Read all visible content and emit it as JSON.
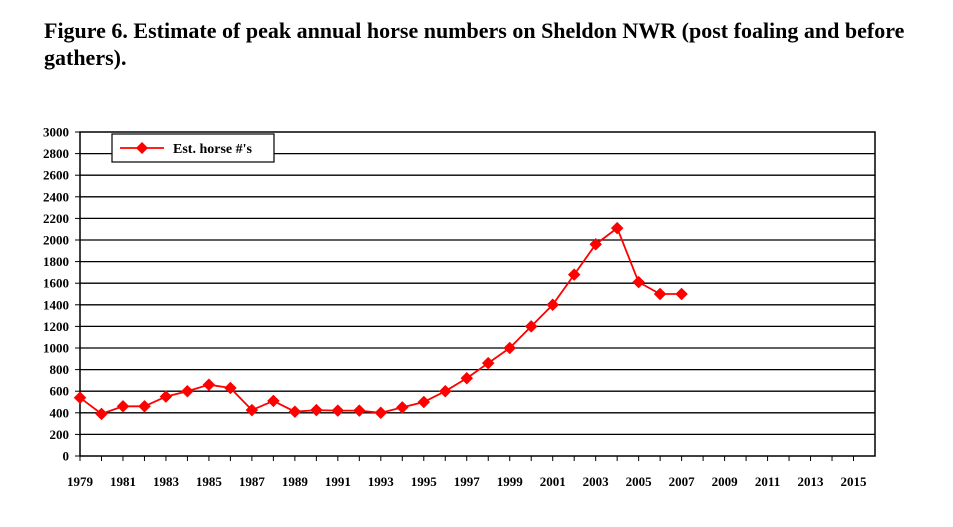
{
  "figure": {
    "title": "Figure 6. Estimate of peak annual horse numbers on Sheldon NWR (post foaling and before gathers)."
  },
  "chart_data": {
    "type": "line",
    "title": "Figure 6. Estimate of peak annual horse numbers on Sheldon NWR (post foaling and before gathers).",
    "xlabel": "",
    "ylabel": "",
    "xlim": [
      1979,
      2016
    ],
    "ylim": [
      0,
      3000
    ],
    "y_ticks": [
      0,
      200,
      400,
      600,
      800,
      1000,
      1200,
      1400,
      1600,
      1800,
      2000,
      2200,
      2400,
      2600,
      2800,
      3000
    ],
    "x_ticks": [
      1979,
      1981,
      1983,
      1985,
      1987,
      1989,
      1991,
      1993,
      1995,
      1997,
      1999,
      2001,
      2003,
      2005,
      2007,
      2009,
      2011,
      2013,
      2015
    ],
    "grid": "horizontal",
    "legend_position": "top-left",
    "series": [
      {
        "name": "Est. horse #'s",
        "color": "#ff0000",
        "marker": "diamond",
        "x": [
          1979,
          1980,
          1981,
          1982,
          1983,
          1984,
          1985,
          1986,
          1987,
          1988,
          1989,
          1990,
          1991,
          1992,
          1993,
          1994,
          1995,
          1996,
          1997,
          1998,
          1999,
          2000,
          2001,
          2002,
          2003,
          2004,
          2005,
          2006,
          2007
        ],
        "values": [
          540,
          390,
          460,
          460,
          550,
          600,
          660,
          630,
          425,
          510,
          410,
          425,
          420,
          420,
          400,
          450,
          500,
          600,
          720,
          860,
          1000,
          1200,
          1400,
          1680,
          1960,
          2110,
          1610,
          1500,
          1500
        ]
      }
    ]
  }
}
